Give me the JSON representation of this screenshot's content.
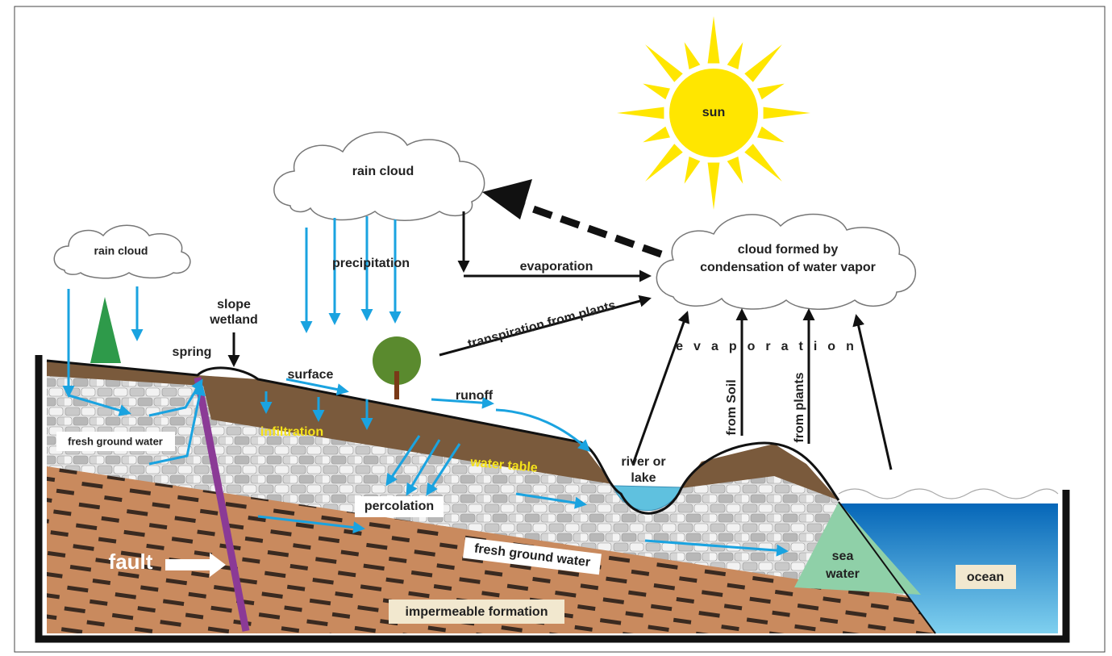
{
  "sun": "sun",
  "rain_cloud_main": "rain cloud",
  "rain_cloud_small": "rain cloud",
  "precipitation": "precipitation",
  "evaporation_arrow": "evaporation",
  "condensation_cloud": [
    "cloud formed by",
    "condensation of water vapor"
  ],
  "transpiration": "transpiration from plants",
  "slope_wetland": [
    "slope",
    "wetland"
  ],
  "spring": "spring",
  "surface": "surface",
  "runoff": "runoff",
  "infiltration": "infiltration",
  "fresh_ground_water_upper": "fresh ground water",
  "water_table": "water table",
  "percolation": "percolation",
  "fresh_ground_water_lower": "fresh ground water",
  "fault": "fault",
  "impermeable_formation": "impermeable formation",
  "river_or_lake": [
    "river or",
    "lake"
  ],
  "evaporation_spaced": "evaporation",
  "from_soil": "from Soil",
  "from_plants": "from plants",
  "sea_water": [
    "sea",
    "water"
  ],
  "ocean": "ocean"
}
